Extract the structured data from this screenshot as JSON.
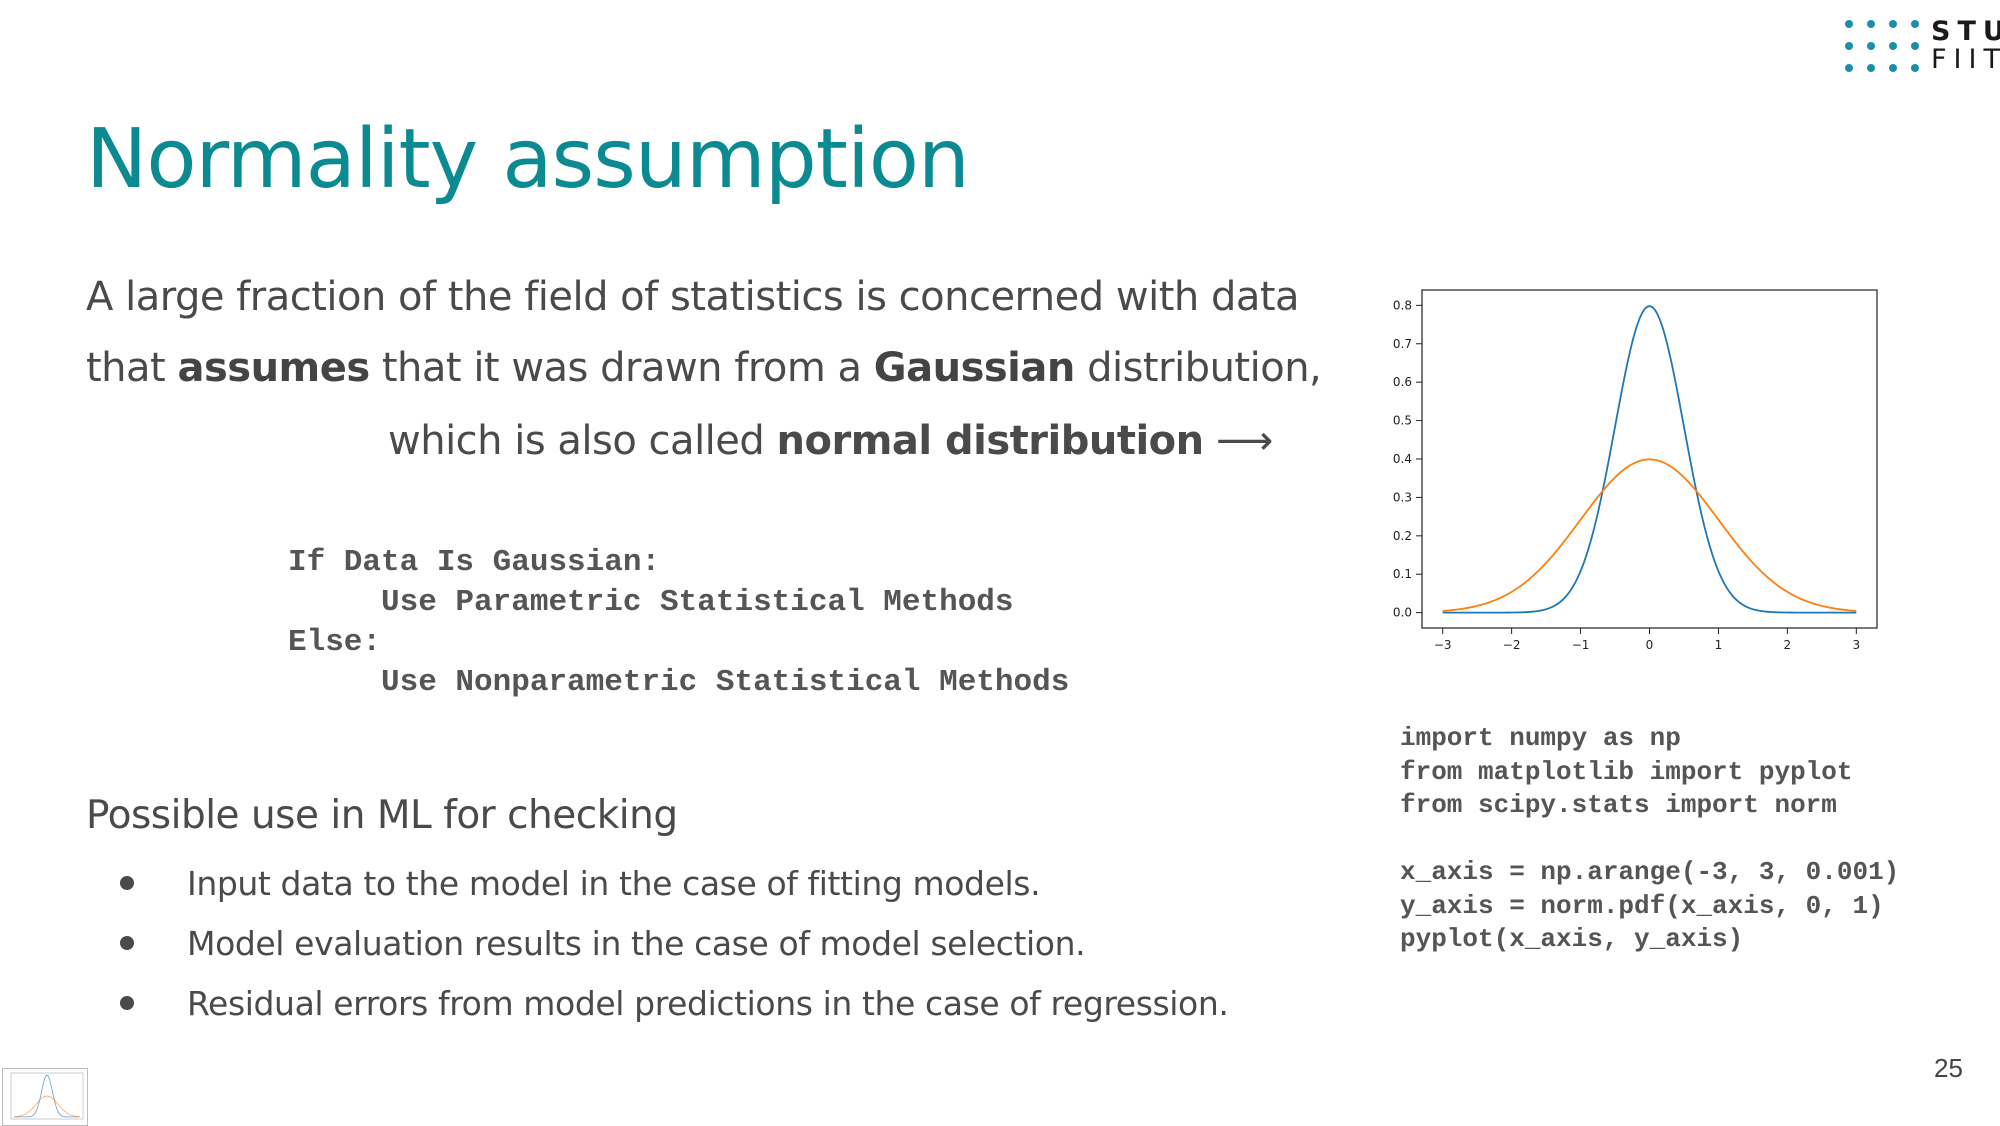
{
  "logo": {
    "line1": "STU",
    "line2": "FIIT",
    "dot_color": "#1a8fa8"
  },
  "title": "Normality assumption",
  "intro": {
    "line1": "A large fraction of the field of statistics is concerned with data",
    "line2_pre": "that ",
    "line2_bold1": "assumes",
    "line2_mid": " that it was drawn from a ",
    "line2_bold2": "Gaussian",
    "line2_post": " distribution,",
    "line3_pre": "which is also called ",
    "line3_bold": "normal distribution",
    "line3_arrow": " ⟶"
  },
  "decision_code": "If Data Is Gaussian:\n     Use Parametric Statistical Methods\nElse:\n     Use Nonparametric Statistical Methods",
  "uses": {
    "heading": "Possible use in ML for checking",
    "items": [
      "Input data to the model in the case of fitting models.",
      "Model evaluation results in the case of model selection.",
      "Residual errors from model predictions in the case of regression."
    ]
  },
  "python_code": "import numpy as np\nfrom matplotlib import pyplot\nfrom scipy.stats import norm\n\nx_axis = np.arange(-3, 3, 0.001)\ny_axis = norm.pdf(x_axis, 0, 1)\npyplot(x_axis, y_axis)",
  "page_number": "25",
  "chart_data": {
    "type": "line",
    "xlim": [
      -3.3,
      3.3
    ],
    "ylim": [
      -0.04,
      0.84
    ],
    "x_ticks": [
      -3,
      -2,
      -1,
      0,
      1,
      2,
      3
    ],
    "x_tick_labels": [
      "−3",
      "−2",
      "−1",
      "0",
      "1",
      "2",
      "3"
    ],
    "y_ticks": [
      0.0,
      0.1,
      0.2,
      0.3,
      0.4,
      0.5,
      0.6,
      0.7,
      0.8
    ],
    "y_tick_labels": [
      "0.0",
      "0.1",
      "0.2",
      "0.3",
      "0.4",
      "0.5",
      "0.6",
      "0.7",
      "0.8"
    ],
    "grid": false,
    "series": [
      {
        "color": "#1f77b4",
        "mu": 0,
        "sigma": 0.5,
        "x_range": [
          -3,
          3
        ]
      },
      {
        "color": "#ff7f0e",
        "mu": 0,
        "sigma": 1.0,
        "x_range": [
          -3,
          3
        ]
      }
    ]
  }
}
